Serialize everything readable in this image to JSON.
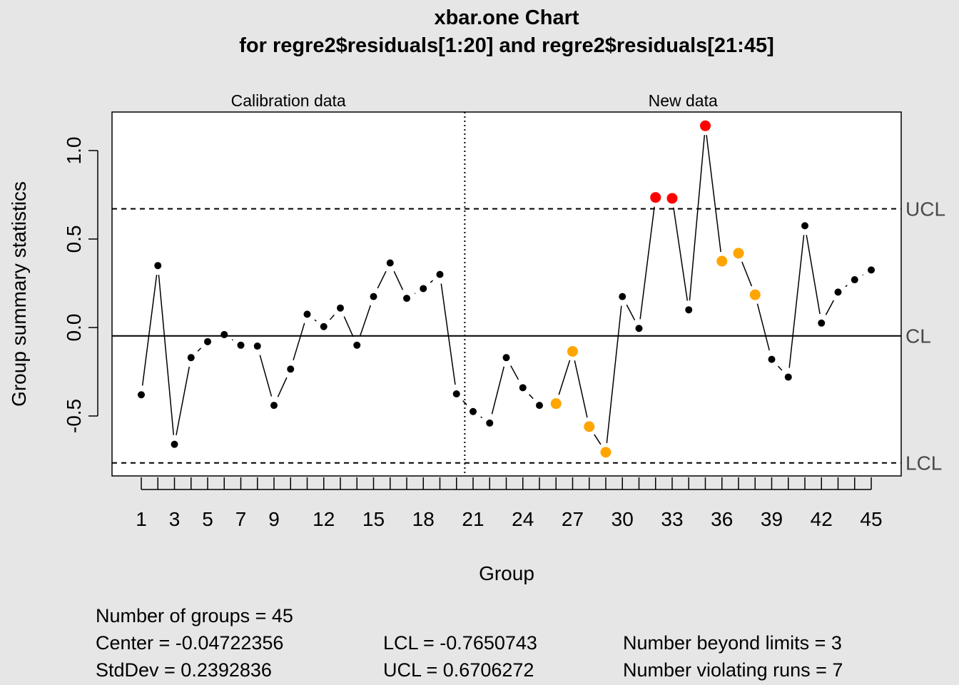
{
  "chart_data": {
    "type": "line",
    "chart_kind": "xbar.one control chart",
    "title": "xbar.one Chart",
    "subtitle": "for regre2$residuals[1:20] and regre2$residuals[21:45]",
    "xlabel": "Group",
    "ylabel": "Group summary statistics",
    "xlim": [
      1,
      45
    ],
    "ylim": [
      -0.75,
      1.15
    ],
    "y_ticks": [
      "-0.5",
      "0.0",
      "0.5",
      "1.0"
    ],
    "x_ticks": [
      "1",
      "3",
      "5",
      "7",
      "9",
      "12",
      "15",
      "18",
      "21",
      "24",
      "27",
      "30",
      "33",
      "36",
      "39",
      "42",
      "45"
    ],
    "sections": [
      {
        "label": "Calibration data",
        "from": 1,
        "to": 20
      },
      {
        "label": "New data",
        "from": 21,
        "to": 45
      }
    ],
    "limits": {
      "ucl": {
        "label": "UCL",
        "value": 0.6706272
      },
      "cl": {
        "label": "CL",
        "value": -0.04722356
      },
      "lcl": {
        "label": "LCL",
        "value": -0.7650743
      }
    },
    "x": [
      1,
      2,
      3,
      4,
      5,
      6,
      7,
      8,
      9,
      10,
      11,
      12,
      13,
      14,
      15,
      16,
      17,
      18,
      19,
      20,
      21,
      22,
      23,
      24,
      25,
      26,
      27,
      28,
      29,
      30,
      31,
      32,
      33,
      34,
      35,
      36,
      37,
      38,
      39,
      40,
      41,
      42,
      43,
      44,
      45
    ],
    "values": [
      -0.38,
      0.35,
      -0.66,
      -0.17,
      -0.08,
      -0.04,
      -0.1,
      -0.105,
      -0.44,
      -0.235,
      0.075,
      0.005,
      0.11,
      -0.1,
      0.175,
      0.365,
      0.165,
      0.22,
      0.3,
      -0.375,
      -0.475,
      -0.54,
      -0.17,
      -0.34,
      -0.44,
      -0.43,
      -0.135,
      -0.56,
      -0.705,
      0.175,
      -0.005,
      0.735,
      0.73,
      0.1,
      1.14,
      0.375,
      0.42,
      0.185,
      -0.18,
      -0.28,
      0.575,
      0.025,
      0.2,
      0.27,
      0.325
    ],
    "point_status": [
      "normal",
      "normal",
      "normal",
      "normal",
      "normal",
      "normal",
      "normal",
      "normal",
      "normal",
      "normal",
      "normal",
      "normal",
      "normal",
      "normal",
      "normal",
      "normal",
      "normal",
      "normal",
      "normal",
      "normal",
      "normal",
      "normal",
      "normal",
      "normal",
      "normal",
      "violating-run",
      "violating-run",
      "violating-run",
      "violating-run",
      "normal",
      "normal",
      "beyond-limits",
      "beyond-limits",
      "normal",
      "beyond-limits",
      "violating-run",
      "violating-run",
      "violating-run",
      "normal",
      "normal",
      "normal",
      "normal",
      "normal",
      "normal",
      "normal"
    ],
    "colors": {
      "normal": "#000000",
      "violating-run": "#ffa500",
      "beyond-limits": "#ff0000",
      "background": "#e6e6e6",
      "plot_background": "#ffffff"
    }
  },
  "summary": {
    "groups": "Number of groups = 45",
    "center": "Center = -0.04722356",
    "stddev": "StdDev = 0.2392836",
    "lcl": "LCL = -0.7650743",
    "ucl": "UCL = 0.6706272",
    "beyond": "Number beyond limits = 3",
    "violating": "Number violating runs = 7"
  }
}
